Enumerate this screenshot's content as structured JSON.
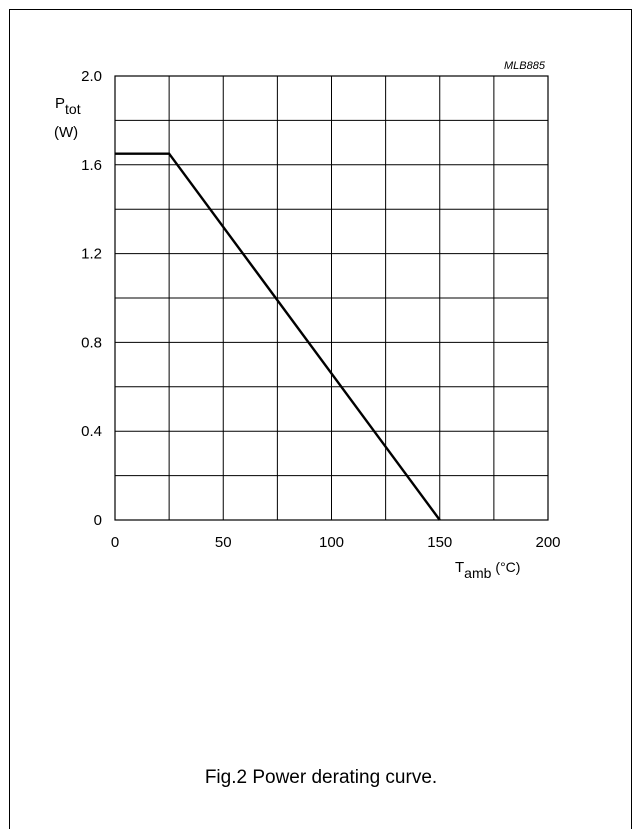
{
  "chart_data": {
    "type": "line",
    "code": "MLB885",
    "ylabel": {
      "main": "P",
      "sub": "tot",
      "unit": "(W)"
    },
    "xlabel": {
      "main": "T",
      "sub": "amb",
      "unit": "(°C)"
    },
    "xlim": [
      0,
      200
    ],
    "ylim": [
      0,
      2.0
    ],
    "x_ticks": [
      {
        "value": 0,
        "label": "0"
      },
      {
        "value": 50,
        "label": "50"
      },
      {
        "value": 100,
        "label": "100"
      },
      {
        "value": 150,
        "label": "150"
      },
      {
        "value": 200,
        "label": "200"
      }
    ],
    "y_ticks": [
      {
        "value": 0,
        "label": "0"
      },
      {
        "value": 0.4,
        "label": "0.4"
      },
      {
        "value": 0.8,
        "label": "0.8"
      },
      {
        "value": 1.2,
        "label": "1.2"
      },
      {
        "value": 1.6,
        "label": "1.6"
      },
      {
        "value": 2.0,
        "label": "2.0"
      }
    ],
    "grid": true,
    "grid_x_step": 25,
    "grid_y_step": 0.2,
    "series": [
      {
        "x": [
          0,
          25,
          150
        ],
        "y": [
          1.65,
          1.65,
          0
        ]
      }
    ]
  },
  "caption": "Fig.2  Power derating curve."
}
